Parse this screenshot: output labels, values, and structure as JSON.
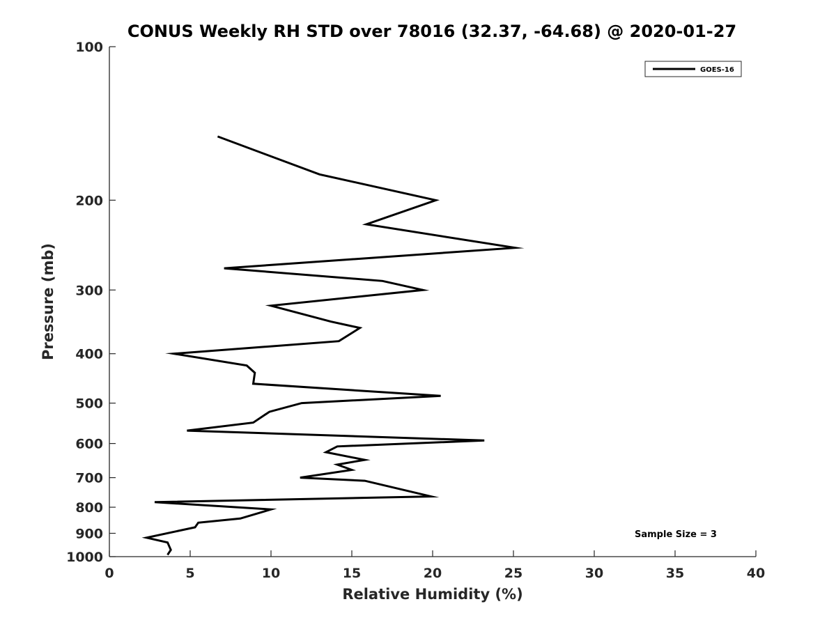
{
  "chart_data": {
    "type": "line",
    "title": "CONUS Weekly RH STD over 78016 (32.37, -64.68) @ 2020-01-27",
    "xlabel": "Relative Humidity (%)",
    "ylabel": "Pressure (mb)",
    "xlim": [
      0,
      40
    ],
    "ylim": [
      100,
      1000
    ],
    "y_scale": "log",
    "y_reversed": true,
    "x_ticks": [
      "0",
      "5",
      "10",
      "15",
      "20",
      "25",
      "30",
      "35",
      "40"
    ],
    "y_ticks": [
      "100",
      "200",
      "300",
      "400",
      "500",
      "600",
      "700",
      "800",
      "900",
      "1000"
    ],
    "grid": false,
    "legend_position": "top-right",
    "annotation": "Sample Size = 3",
    "series": [
      {
        "name": "GOES-16",
        "color": "#000000",
        "points": [
          [
            6.7,
            150
          ],
          [
            13.0,
            178
          ],
          [
            20.2,
            200
          ],
          [
            15.9,
            223
          ],
          [
            25.1,
            248
          ],
          [
            7.1,
            272
          ],
          [
            16.9,
            288
          ],
          [
            19.4,
            300
          ],
          [
            10.0,
            322
          ],
          [
            13.7,
            346
          ],
          [
            15.5,
            356
          ],
          [
            14.2,
            378
          ],
          [
            4.0,
            400
          ],
          [
            8.5,
            422
          ],
          [
            9.0,
            436
          ],
          [
            8.9,
            458
          ],
          [
            20.5,
            484
          ],
          [
            11.9,
            500
          ],
          [
            9.9,
            520
          ],
          [
            8.9,
            546
          ],
          [
            4.8,
            566
          ],
          [
            23.2,
            592
          ],
          [
            14.1,
            608
          ],
          [
            13.4,
            624
          ],
          [
            15.8,
            646
          ],
          [
            14.1,
            660
          ],
          [
            15.0,
            676
          ],
          [
            11.8,
            700
          ],
          [
            15.8,
            710
          ],
          [
            19.9,
            762
          ],
          [
            2.8,
            782
          ],
          [
            10.0,
            808
          ],
          [
            8.1,
            842
          ],
          [
            5.5,
            858
          ],
          [
            5.3,
            876
          ],
          [
            2.3,
            918
          ],
          [
            3.6,
            938
          ],
          [
            3.8,
            970
          ],
          [
            3.6,
            992
          ]
        ]
      }
    ]
  }
}
